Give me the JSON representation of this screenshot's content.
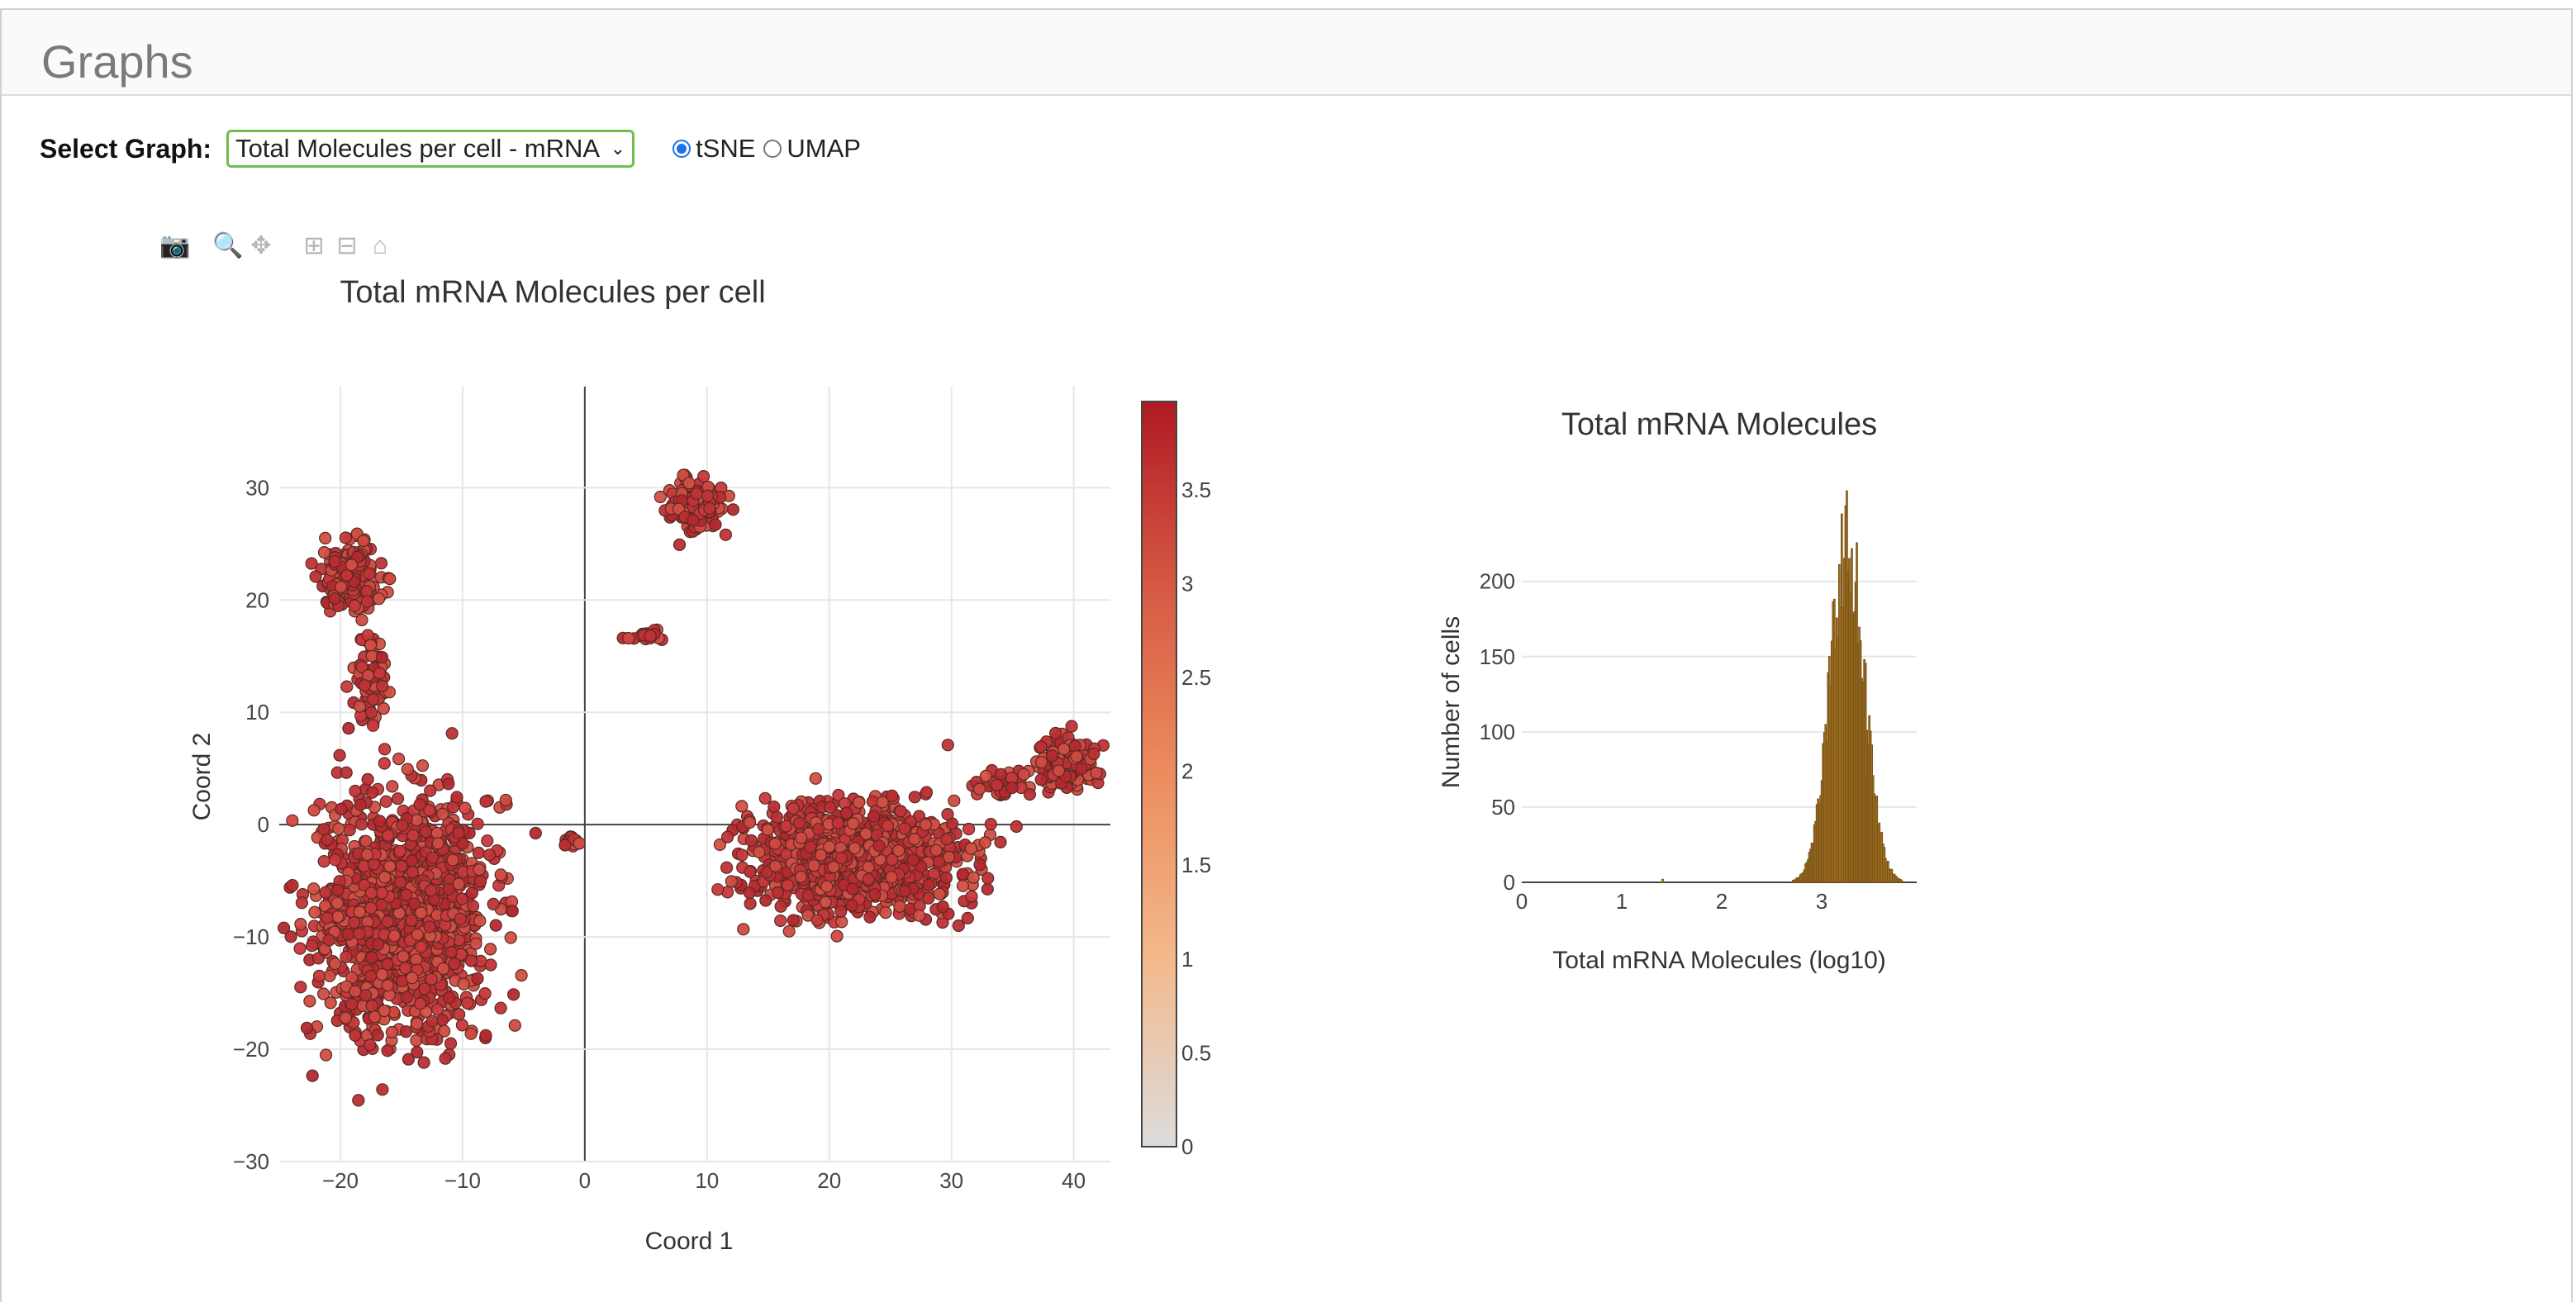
{
  "panel": {
    "title": "Graphs"
  },
  "controls": {
    "select_label": "Select Graph:",
    "select_value": "Total Molecules per cell - mRNA",
    "radio_options": [
      {
        "label": "tSNE",
        "checked": true
      },
      {
        "label": "UMAP",
        "checked": false
      }
    ]
  },
  "modebar": {
    "icons": [
      "camera-icon",
      "zoom-icon",
      "pan-icon",
      "zoom-in-icon",
      "zoom-out-icon",
      "home-icon"
    ]
  },
  "chart_data": [
    {
      "type": "scatter",
      "title": "Total mRNA Molecules per cell",
      "xlabel": "Coord 1",
      "ylabel": "Coord 2",
      "xlim": [
        -25,
        43
      ],
      "ylim": [
        -30,
        39
      ],
      "xticks": [
        -20,
        -10,
        0,
        10,
        20,
        30,
        40
      ],
      "yticks": [
        -30,
        -20,
        -10,
        0,
        10,
        20,
        30
      ],
      "grid": true,
      "marker_color": "#c0353a",
      "clusters": [
        {
          "cx": -15,
          "cy": -8,
          "sx": 5.5,
          "sy": 8,
          "n": 1400,
          "value": 3.2
        },
        {
          "cx": -19,
          "cy": 22,
          "sx": 1.8,
          "sy": 2.3,
          "n": 220,
          "value": 3.3
        },
        {
          "cx": -17.5,
          "cy": 13,
          "sx": 1.2,
          "sy": 3,
          "n": 80,
          "value": 3.2
        },
        {
          "cx": 9,
          "cy": 28.5,
          "sx": 1.8,
          "sy": 1.7,
          "n": 170,
          "value": 3.3
        },
        {
          "cx": 22,
          "cy": -3,
          "sx": 6.5,
          "sy": 3.8,
          "n": 1100,
          "value": 3.2
        },
        {
          "cx": 39.5,
          "cy": 5.5,
          "sx": 1.9,
          "sy": 1.8,
          "n": 130,
          "value": 3.3
        },
        {
          "cx": 34,
          "cy": 3.5,
          "sx": 2,
          "sy": 1,
          "n": 40,
          "value": 3.2
        },
        {
          "cx": -1,
          "cy": -1.5,
          "sx": 0.6,
          "sy": 0.5,
          "n": 14,
          "value": 3.0
        },
        {
          "cx": 5,
          "cy": 16.8,
          "sx": 1.3,
          "sy": 0.35,
          "n": 16,
          "value": 3.1
        }
      ],
      "colorbar": {
        "ticks": [
          "0",
          "0.5",
          "1",
          "1.5",
          "2",
          "2.5",
          "3",
          "3.5"
        ],
        "range": [
          0,
          4
        ],
        "colors": [
          "#dcdcdc",
          "#f3b98c",
          "#ec8c5d",
          "#d65a44",
          "#b01a24"
        ]
      }
    },
    {
      "type": "bar",
      "title": "Total mRNA Molecules",
      "xlabel": "Total mRNA Molecules (log10)",
      "ylabel": "Number of cells",
      "xlim": [
        0,
        3.95
      ],
      "ylim": [
        0,
        235
      ],
      "xticks": [
        "0",
        "1",
        "2",
        "3"
      ],
      "yticks": [
        "0",
        "50",
        "100",
        "150",
        "200"
      ],
      "bar_color": "#e8a32e",
      "bar_edge": "#7a5418",
      "distribution": {
        "center": 3.25,
        "spread": 0.17,
        "peak": 225,
        "min_x": 2.62,
        "max_x": 3.95
      }
    }
  ]
}
